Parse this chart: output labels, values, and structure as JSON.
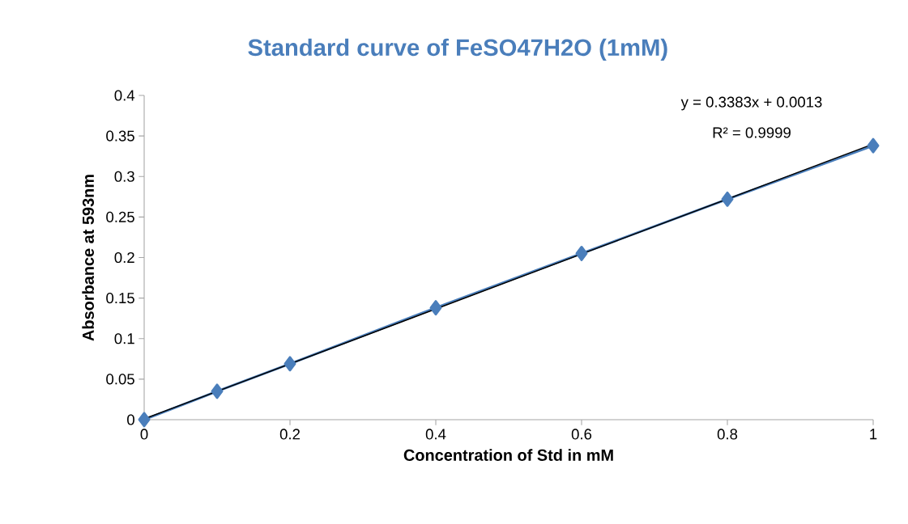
{
  "chart_data": {
    "type": "line",
    "title": "Standard curve of FeSO47H2O (1mM)",
    "xlabel": "Concentration of Std in mM",
    "ylabel": "Absorbance at 593nm",
    "x": [
      0,
      0.1,
      0.2,
      0.4,
      0.6,
      0.8,
      1
    ],
    "series": [
      {
        "color": "#4a7ebb",
        "marker": "diamond",
        "values": [
          0,
          0.035,
          0.069,
          0.138,
          0.205,
          0.272,
          0.338
        ]
      },
      {
        "color": "#000000",
        "marker": "none",
        "x": [
          0,
          1
        ],
        "values": [
          0.001,
          0.34
        ]
      }
    ],
    "annotations": [
      "y = 0.3383x + 0.0013",
      "R² = 0.9999"
    ],
    "xlim": [
      0,
      1
    ],
    "ylim": [
      0,
      0.4
    ],
    "xticks": [
      0,
      0.2,
      0.4,
      0.6,
      0.8,
      1
    ],
    "yticks": [
      0,
      0.05,
      0.1,
      0.15,
      0.2,
      0.25,
      0.3,
      0.35,
      0.4
    ],
    "grid": false
  }
}
